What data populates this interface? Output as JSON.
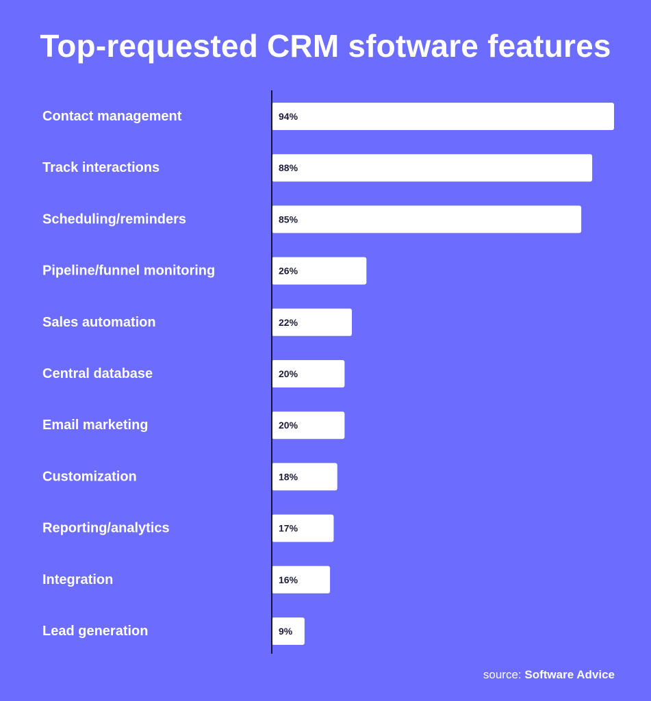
{
  "chart_data": {
    "type": "bar",
    "orientation": "horizontal",
    "title": "Top-requested CRM sfotware features",
    "categories": [
      "Contact management",
      "Track interactions",
      "Scheduling/reminders",
      "Pipeline/funnel monitoring",
      "Sales automation",
      "Central database",
      "Email marketing",
      "Customization",
      "Reporting/analytics",
      "Integration",
      "Lead generation"
    ],
    "values": [
      94,
      88,
      85,
      26,
      22,
      20,
      20,
      18,
      17,
      16,
      9
    ],
    "value_labels": [
      "94%",
      "88%",
      "85%",
      "26%",
      "22%",
      "20%",
      "20%",
      "18%",
      "17%",
      "16%",
      "9%"
    ],
    "xlim": [
      0,
      100
    ],
    "grid": false,
    "legend": "none"
  },
  "colors": {
    "background": "#6c6cfe",
    "bar": "#ffffff",
    "value_text": "#1b1b3a",
    "category_text": "#ffffff",
    "axis": "#14143a"
  },
  "source": {
    "prefix": "source:",
    "name": "Software Advice"
  }
}
